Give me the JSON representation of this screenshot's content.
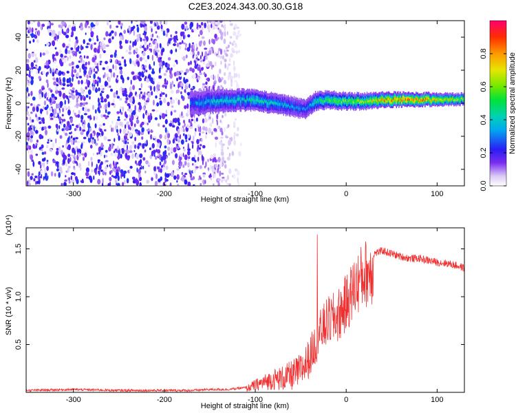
{
  "title": "C2E3.2024.343.00.30.G18",
  "chart_data": [
    {
      "type": "heatmap",
      "xlabel": "Height of straight line (km)",
      "ylabel": "Frequency (Hz)",
      "xlim": [
        -352,
        130
      ],
      "ylim": [
        -50,
        50
      ],
      "x_ticks": [
        -300,
        -200,
        -100,
        0,
        100
      ],
      "y_ticks": [
        -40,
        -20,
        0,
        20,
        40
      ],
      "colorbar": {
        "label": "Normalized spectral amplitude",
        "range": [
          0,
          1
        ],
        "ticks": [
          0.0,
          0.2,
          0.4,
          0.6,
          0.8
        ]
      },
      "ridge": {
        "x": [
          -170,
          -150,
          -120,
          -100,
          -80,
          -60,
          -45,
          -35,
          -20,
          0,
          20,
          50,
          80,
          100,
          128
        ],
        "y": [
          0,
          1,
          2,
          2,
          0,
          -2,
          -4,
          1,
          2,
          1,
          1,
          2,
          2,
          2,
          2
        ],
        "amplitude": [
          0.3,
          0.4,
          0.4,
          0.45,
          0.4,
          0.35,
          0.3,
          0.45,
          0.55,
          0.6,
          0.65,
          0.85,
          0.9,
          0.75,
          0.65
        ]
      },
      "noise_region": {
        "x_start": -352,
        "x_end": -120,
        "amplitude_max": 0.25
      }
    },
    {
      "type": "line",
      "xlabel": "Height of straight line (km)",
      "ylabel": "SNR (10 * v/v)",
      "y_multiplier": "(x10⁴)",
      "xlim": [
        -352,
        130
      ],
      "ylim": [
        0,
        1.72
      ],
      "x_ticks": [
        -300,
        -200,
        -100,
        0,
        100
      ],
      "y_ticks": [
        0.5,
        1.0,
        1.5
      ],
      "color": "#f03030",
      "series": [
        {
          "x": [
            -352,
            -300,
            -250,
            -200,
            -170,
            -150,
            -130,
            -110,
            -100,
            -90,
            -80,
            -70,
            -60,
            -50,
            -40,
            -30,
            -20,
            -10,
            0,
            10,
            20,
            30,
            40,
            50,
            60,
            70,
            80,
            90,
            100,
            110,
            120,
            130
          ],
          "y": [
            0.02,
            0.03,
            0.02,
            0.02,
            0.02,
            0.03,
            0.03,
            0.05,
            0.1,
            0.14,
            0.18,
            0.2,
            0.24,
            0.3,
            0.45,
            0.7,
            0.85,
            0.9,
            1.05,
            1.25,
            1.38,
            1.45,
            1.48,
            1.45,
            1.42,
            1.4,
            1.4,
            1.38,
            1.36,
            1.35,
            1.33,
            1.3
          ]
        }
      ]
    }
  ]
}
